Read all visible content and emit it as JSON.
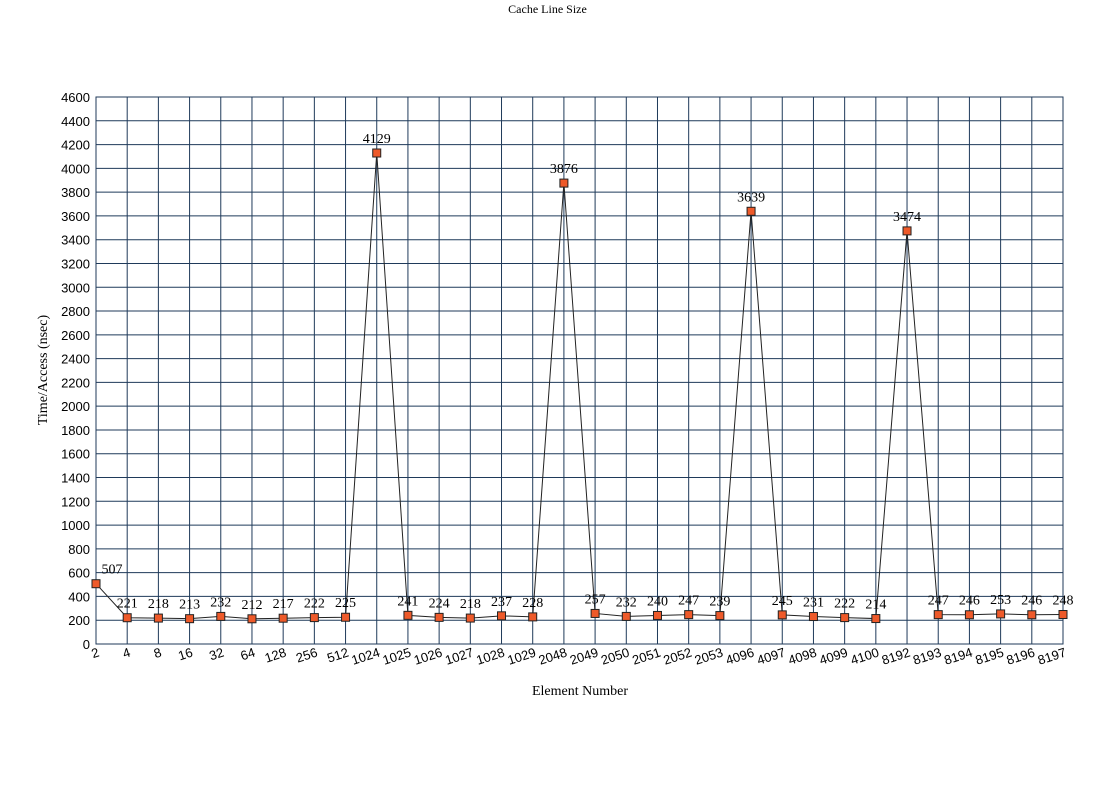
{
  "chart_data": {
    "type": "line",
    "title": "Cache Line Size",
    "xlabel": "Element Number",
    "ylabel": "Time/Access (nsec)",
    "ylim": [
      0,
      4600
    ],
    "y_ticks": [
      0,
      200,
      400,
      600,
      800,
      1000,
      1200,
      1400,
      1600,
      1800,
      2000,
      2200,
      2400,
      2600,
      2800,
      3000,
      3200,
      3400,
      3600,
      3800,
      4000,
      4200,
      4400,
      4600
    ],
    "grid": true,
    "legend": "none",
    "categories": [
      "2",
      "4",
      "8",
      "16",
      "32",
      "64",
      "128",
      "256",
      "512",
      "1024",
      "1025",
      "1026",
      "1027",
      "1028",
      "1029",
      "2048",
      "2049",
      "2050",
      "2051",
      "2052",
      "2053",
      "4096",
      "4097",
      "4098",
      "4099",
      "4100",
      "8192",
      "8193",
      "8194",
      "8195",
      "8196",
      "8197"
    ],
    "series": [
      {
        "values": [
          507,
          221,
          218,
          213,
          232,
          212,
          217,
          222,
          225,
          4129,
          241,
          224,
          218,
          237,
          228,
          3876,
          257,
          232,
          240,
          247,
          239,
          3639,
          245,
          231,
          222,
          214,
          3474,
          247,
          246,
          253,
          246,
          248
        ],
        "color": "#ee5a2a",
        "data_labels": [
          "507",
          "221",
          "218",
          "213",
          "232",
          "212",
          "217",
          "222",
          "225",
          "4129",
          "241",
          "224",
          "218",
          "237",
          "228",
          "3876",
          "257",
          "232",
          "240",
          "247",
          "239",
          "3639",
          "245",
          "231",
          "222",
          "214",
          "3474",
          "247",
          "246",
          "253",
          "246",
          "248"
        ]
      }
    ]
  }
}
